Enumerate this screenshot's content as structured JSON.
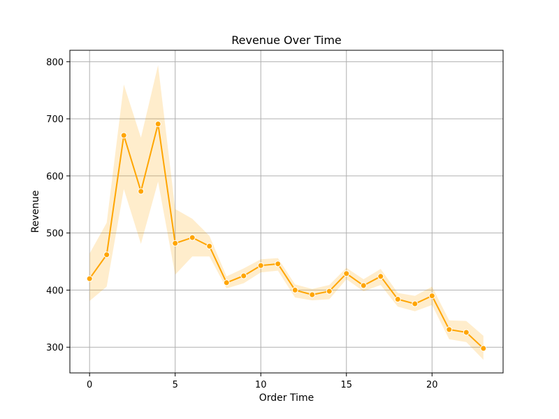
{
  "chart_data": {
    "type": "line",
    "title": "Revenue Over Time",
    "xlabel": "Order Time",
    "ylabel": "Revenue",
    "xlim": [
      -1.15,
      24.15
    ],
    "ylim": [
      255,
      820
    ],
    "x_ticks": [
      0,
      5,
      10,
      15,
      20
    ],
    "y_ticks": [
      300,
      400,
      500,
      600,
      700,
      800
    ],
    "grid": true,
    "legend": "none",
    "series": [
      {
        "color": "#ffa500",
        "band_color": "#ffa500",
        "marker": "circle",
        "x": [
          0,
          1,
          2,
          3,
          4,
          5,
          6,
          7,
          8,
          9,
          10,
          11,
          12,
          13,
          14,
          15,
          16,
          17,
          18,
          19,
          20,
          21,
          22,
          23
        ],
        "y": [
          420,
          462,
          671,
          573,
          691,
          482,
          492,
          477,
          413,
          425,
          443,
          446,
          400,
          392,
          398,
          429,
          408,
          424,
          384,
          376,
          390,
          331,
          326,
          298
        ],
        "lower": [
          381,
          406,
          577,
          481,
          590,
          427,
          459,
          459,
          403,
          412,
          431,
          434,
          387,
          382,
          384,
          419,
          398,
          409,
          371,
          363,
          374,
          314,
          309,
          278
        ],
        "upper": [
          464,
          518,
          760,
          667,
          794,
          542,
          525,
          495,
          424,
          438,
          454,
          456,
          410,
          402,
          409,
          439,
          419,
          437,
          395,
          390,
          406,
          347,
          346,
          320
        ]
      }
    ]
  }
}
